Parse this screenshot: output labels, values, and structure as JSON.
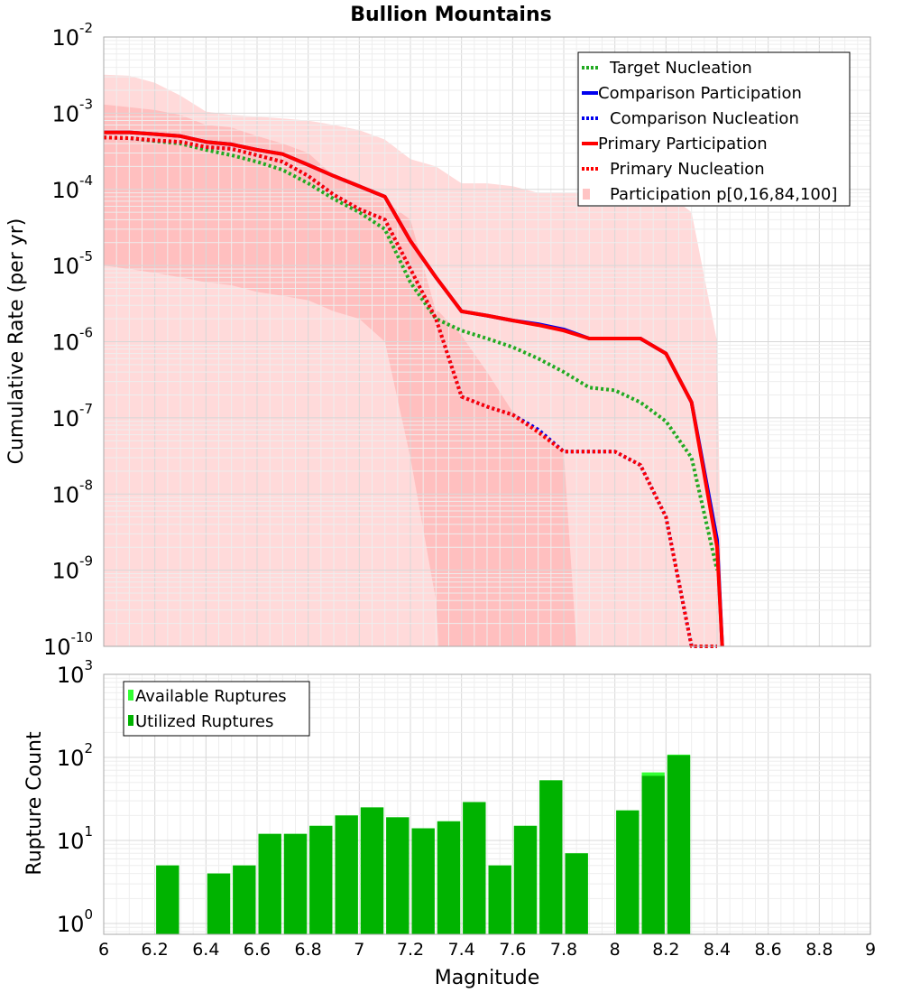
{
  "chart_data": [
    {
      "type": "line",
      "title": "Bullion Mountains",
      "xlabel": "",
      "ylabel": "Cumulative Rate (per yr)",
      "xlim": [
        6,
        9
      ],
      "ylim_log10": [
        -10,
        -2
      ],
      "y_scale": "log",
      "y_ticks_exponent": [
        "-10",
        "-9",
        "-8",
        "-7",
        "-6",
        "-5",
        "-4",
        "-3",
        "-2"
      ],
      "y_tick_base": "10",
      "legend": {
        "position": "top-right",
        "entries": [
          {
            "label": "Target Nucleation",
            "color": "#22aa22",
            "style": "dotted"
          },
          {
            "label": "Comparison Participation",
            "color": "#0000ee",
            "style": "solid"
          },
          {
            "label": "Comparison Nucleation",
            "color": "#0000ee",
            "style": "dotted"
          },
          {
            "label": "Primary Participation",
            "color": "#ff0000",
            "style": "solid"
          },
          {
            "label": "Primary Nucleation",
            "color": "#ff0000",
            "style": "dotted"
          },
          {
            "label": "Participation p[0,16,84,100]",
            "color": "#ffc4c4",
            "style": "fill"
          }
        ]
      },
      "bands": [
        {
          "name": "p0-p100",
          "color": "#ffdada",
          "x": [
            6.0,
            6.1,
            6.2,
            6.3,
            6.4,
            6.5,
            6.6,
            6.7,
            6.8,
            6.9,
            7.0,
            7.1,
            7.2,
            7.3,
            7.4,
            7.5,
            7.6,
            7.7,
            7.8,
            7.9,
            8.0,
            8.1,
            8.2,
            8.3,
            8.4,
            8.42
          ],
          "upper": [
            0.0032,
            0.0031,
            0.0025,
            0.0017,
            0.00105,
            0.00095,
            0.0009,
            0.00085,
            0.0008,
            0.0007,
            0.0006,
            0.00045,
            0.00025,
            0.0002,
            0.00012,
            0.00012,
            0.00011,
            9e-05,
            9e-05,
            9e-05,
            9e-05,
            9e-05,
            9e-05,
            5e-05,
            1e-06,
            1e-10
          ],
          "lower": [
            1e-10,
            1e-10,
            1e-10,
            1e-10,
            1e-10,
            1e-10,
            1e-10,
            1e-10,
            1e-10,
            1e-10,
            1e-10,
            1e-10,
            1e-10,
            1e-10,
            1e-10,
            1e-10,
            1e-10,
            1e-10,
            1e-10,
            1e-10,
            1e-10,
            1e-10,
            1e-10,
            1e-10,
            1e-10,
            1e-10
          ]
        },
        {
          "name": "p16-p84",
          "color": "#ffbfbf",
          "x": [
            6.0,
            6.1,
            6.2,
            6.3,
            6.4,
            6.5,
            6.6,
            6.7,
            6.8,
            6.9,
            7.0,
            7.1,
            7.2,
            7.3,
            7.31,
            7.4,
            7.5,
            7.6,
            7.7,
            7.8,
            7.85
          ],
          "upper": [
            0.0013,
            0.0012,
            0.0011,
            0.00095,
            0.0007,
            0.00065,
            0.0005,
            0.0004,
            0.0003,
            0.00015,
            0.00012,
            7e-05,
            4e-05,
            2.5e-06,
            2.5e-06,
            1.2e-06,
            4e-07,
            1.2e-07,
            7e-08,
            3.5e-08,
            1e-10
          ],
          "lower": [
            1e-05,
            9e-06,
            8e-06,
            7e-06,
            6e-06,
            5.5e-06,
            4.5e-06,
            4e-06,
            3.5e-06,
            2.5e-06,
            2e-06,
            1e-06,
            3e-08,
            4e-10,
            1e-10,
            1e-10,
            1e-10,
            1e-10,
            1e-10,
            1e-10,
            1e-10
          ]
        }
      ],
      "series": [
        {
          "name": "Target Nucleation",
          "color": "#22aa22",
          "style": "dotted",
          "x": [
            6.0,
            6.1,
            6.2,
            6.3,
            6.4,
            6.5,
            6.6,
            6.7,
            6.8,
            6.9,
            7.0,
            7.1,
            7.2,
            7.3,
            7.4,
            7.5,
            7.6,
            7.7,
            7.8,
            7.9,
            8.0,
            8.1,
            8.2,
            8.3,
            8.4
          ],
          "y": [
            0.00048,
            0.00047,
            0.00043,
            0.0004,
            0.00033,
            0.00028,
            0.00023,
            0.00018,
            0.00012,
            7.5e-05,
            5e-05,
            3e-05,
            6e-06,
            2e-06,
            1.4e-06,
            1.1e-06,
            8.5e-07,
            6e-07,
            4e-07,
            2.5e-07,
            2.3e-07,
            1.6e-07,
            9e-08,
            3e-08,
            1e-09
          ]
        },
        {
          "name": "Comparison Participation",
          "color": "#0000ee",
          "style": "solid",
          "x": [
            6.0,
            6.1,
            6.2,
            6.3,
            6.4,
            6.5,
            6.6,
            6.7,
            6.8,
            6.9,
            7.0,
            7.1,
            7.2,
            7.3,
            7.4,
            7.5,
            7.6,
            7.7,
            7.8,
            7.9,
            8.0,
            8.1,
            8.2,
            8.3,
            8.4,
            8.42
          ],
          "y": [
            0.00056,
            0.00056,
            0.00053,
            0.0005,
            0.00042,
            0.00039,
            0.00033,
            0.00029,
            0.00021,
            0.00015,
            0.00011,
            8e-05,
            2.1e-05,
            7e-06,
            2.5e-06,
            2.2e-06,
            1.9e-06,
            1.7e-06,
            1.45e-06,
            1.1e-06,
            1.1e-06,
            1.1e-06,
            7e-07,
            1.6e-07,
            2.5e-09,
            1e-10
          ]
        },
        {
          "name": "Comparison Nucleation",
          "color": "#0000ee",
          "style": "dotted",
          "x": [
            6.0,
            6.1,
            6.2,
            6.3,
            6.4,
            6.5,
            6.6,
            6.7,
            6.8,
            6.9,
            7.0,
            7.1,
            7.2,
            7.3,
            7.4,
            7.5,
            7.6,
            7.7,
            7.8,
            7.9,
            8.0,
            8.1,
            8.2,
            8.3,
            8.4
          ],
          "y": [
            0.00048,
            0.00047,
            0.00044,
            0.00042,
            0.00036,
            0.00034,
            0.00028,
            0.00023,
            0.00015,
            8.5e-05,
            5.5e-05,
            4e-05,
            9e-06,
            2e-06,
            1.9e-07,
            1.4e-07,
            1.1e-07,
            7e-08,
            3.6e-08,
            3.6e-08,
            3.6e-08,
            2.4e-08,
            5e-09,
            1e-10,
            1e-10
          ]
        },
        {
          "name": "Primary Participation",
          "color": "#ff0000",
          "style": "solid",
          "x": [
            6.0,
            6.1,
            6.2,
            6.3,
            6.4,
            6.5,
            6.6,
            6.7,
            6.8,
            6.9,
            7.0,
            7.1,
            7.2,
            7.3,
            7.4,
            7.5,
            7.6,
            7.7,
            7.8,
            7.9,
            8.0,
            8.1,
            8.2,
            8.3,
            8.4,
            8.42
          ],
          "y": [
            0.00056,
            0.00056,
            0.00053,
            0.0005,
            0.00042,
            0.00039,
            0.00033,
            0.00029,
            0.00021,
            0.00015,
            0.00011,
            8e-05,
            2.1e-05,
            7e-06,
            2.5e-06,
            2.2e-06,
            1.9e-06,
            1.65e-06,
            1.4e-06,
            1.1e-06,
            1.1e-06,
            1.1e-06,
            7e-07,
            1.6e-07,
            2e-09,
            1e-10
          ]
        },
        {
          "name": "Primary Nucleation",
          "color": "#ff0000",
          "style": "dotted",
          "x": [
            6.0,
            6.1,
            6.2,
            6.3,
            6.4,
            6.5,
            6.6,
            6.7,
            6.8,
            6.9,
            7.0,
            7.1,
            7.2,
            7.3,
            7.4,
            7.5,
            7.6,
            7.7,
            7.8,
            7.9,
            8.0,
            8.1,
            8.2,
            8.3,
            8.4
          ],
          "y": [
            0.00048,
            0.00047,
            0.00044,
            0.00042,
            0.00036,
            0.00034,
            0.00028,
            0.00023,
            0.00015,
            8.5e-05,
            5.5e-05,
            4e-05,
            9e-06,
            2e-06,
            1.9e-07,
            1.4e-07,
            1.1e-07,
            6.5e-08,
            3.6e-08,
            3.6e-08,
            3.6e-08,
            2.4e-08,
            5e-09,
            1e-10,
            1e-10
          ]
        }
      ]
    },
    {
      "type": "bar",
      "title": "",
      "xlabel": "Magnitude",
      "ylabel": "Rupture Count",
      "xlim": [
        6,
        9
      ],
      "ylim_log10": [
        -0.13,
        3
      ],
      "y_scale": "log",
      "y_ticks_exponent": [
        "0",
        "1",
        "2",
        "3"
      ],
      "y_tick_base": "10",
      "x_tick_labels": [
        "6",
        "6.2",
        "6.4",
        "6.6",
        "6.8",
        "7",
        "7.2",
        "7.4",
        "7.6",
        "7.8",
        "8",
        "8.2",
        "8.4",
        "8.6",
        "8.8",
        "9"
      ],
      "legend": {
        "position": "top-left",
        "entries": [
          {
            "label": "Available Ruptures",
            "color": "#33ff33"
          },
          {
            "label": "Utilized Ruptures",
            "color": "#00b300"
          }
        ]
      },
      "bin_width": 0.1,
      "bin_centers": [
        6.25,
        6.45,
        6.55,
        6.65,
        6.75,
        6.85,
        6.95,
        7.05,
        7.15,
        7.25,
        7.35,
        7.45,
        7.55,
        7.65,
        7.75,
        7.85,
        8.05,
        8.15,
        8.25
      ],
      "series": [
        {
          "name": "Available Ruptures",
          "color": "#33ff33",
          "values": [
            5,
            4,
            5,
            12,
            12,
            15,
            20,
            25,
            19,
            14,
            17,
            29,
            5,
            15,
            53,
            7,
            23,
            66,
            108
          ]
        },
        {
          "name": "Utilized Ruptures",
          "color": "#00b300",
          "values": [
            5,
            4,
            5,
            12,
            12,
            15,
            20,
            25,
            19,
            14,
            17,
            29,
            5,
            15,
            53,
            7,
            23,
            60,
            106
          ]
        }
      ]
    }
  ]
}
